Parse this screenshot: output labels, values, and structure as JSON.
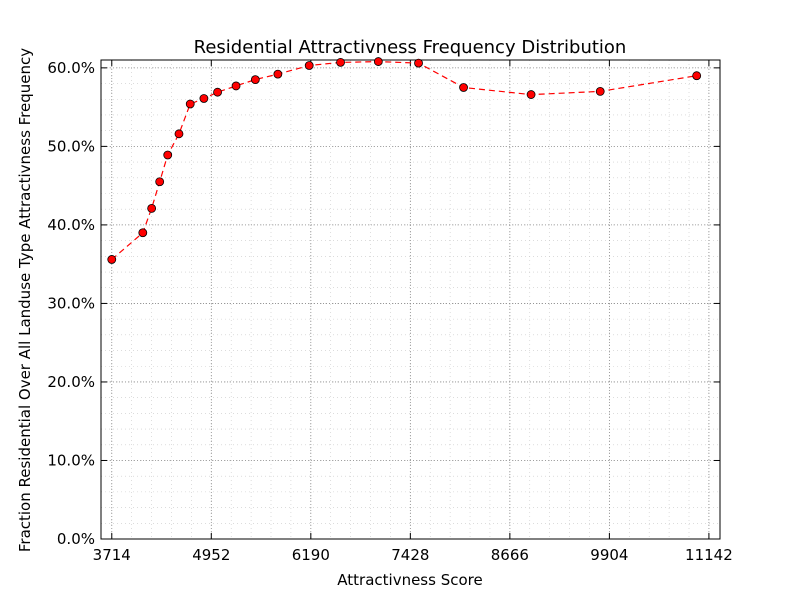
{
  "chart_data": {
    "type": "line",
    "title": "Residential Attractivness Frequency Distribution",
    "xlabel": "Attractivness Score",
    "ylabel": "Fraction Residential Over All Landuse Type Attractivness Frequency",
    "xlim": [
      3580,
      11280
    ],
    "ylim": [
      0.0,
      0.61
    ],
    "x_ticks": [
      3714,
      4952,
      6190,
      7428,
      8666,
      9904,
      11142
    ],
    "x_tick_labels": [
      "3714",
      "4952",
      "6190",
      "7428",
      "8666",
      "9904",
      "11142"
    ],
    "y_ticks": [
      0.0,
      0.1,
      0.2,
      0.3,
      0.4,
      0.5,
      0.6
    ],
    "y_tick_labels": [
      "0.0%",
      "10.0%",
      "20.0%",
      "30.0%",
      "40.0%",
      "50.0%",
      "60.0%"
    ],
    "grid": true,
    "minor_grid": true,
    "legend": "none",
    "series": [
      {
        "color": "#ff0000",
        "marker_color": "#ff0000",
        "line_style": "dashed",
        "x": [
          3714,
          4100,
          4210,
          4310,
          4410,
          4550,
          4690,
          4860,
          5030,
          5260,
          5500,
          5780,
          6170,
          6560,
          7030,
          7530,
          8090,
          8930,
          9790,
          10990
        ],
        "y": [
          0.356,
          0.39,
          0.421,
          0.455,
          0.489,
          0.516,
          0.554,
          0.561,
          0.569,
          0.577,
          0.585,
          0.592,
          0.603,
          0.607,
          0.608,
          0.606,
          0.575,
          0.566,
          0.57,
          0.59
        ]
      }
    ]
  }
}
